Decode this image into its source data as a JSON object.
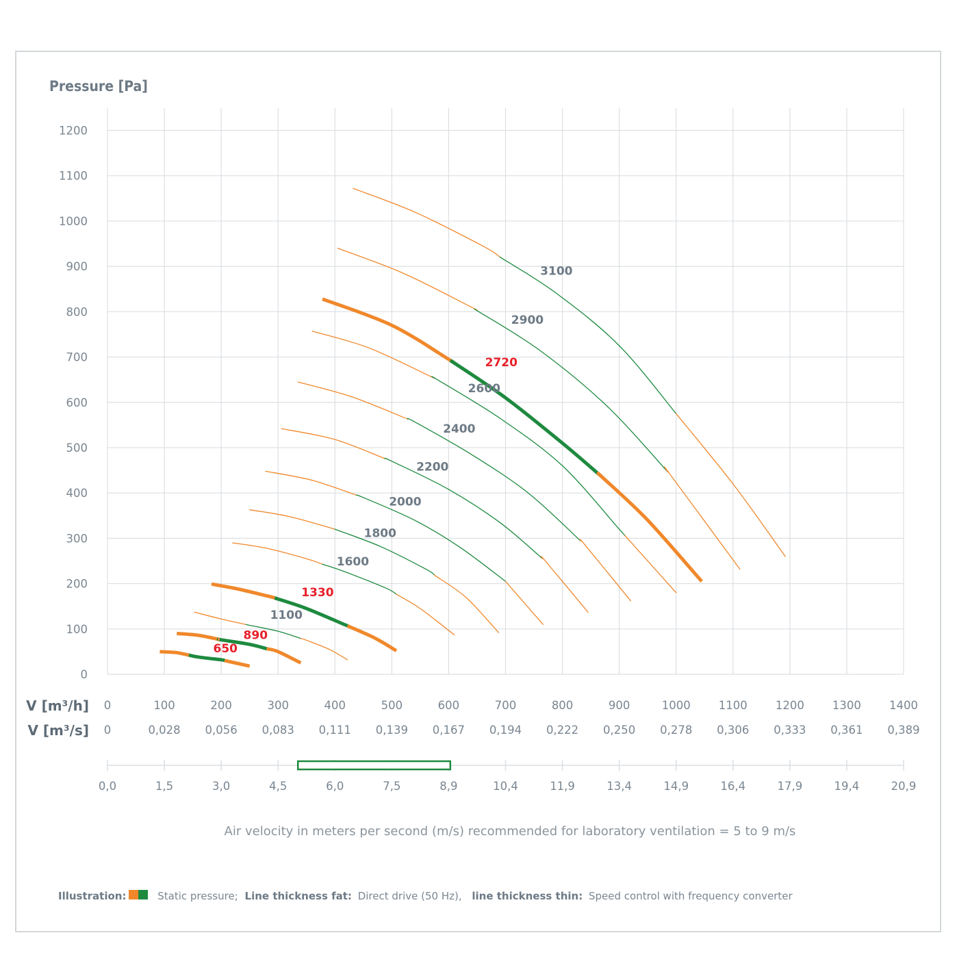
{
  "chart_data": {
    "type": "line",
    "title": "",
    "ylabel": "Pressure [Pa]",
    "ylim": [
      0,
      1250
    ],
    "yticks": [
      "0",
      "100",
      "200",
      "300",
      "400",
      "500",
      "600",
      "700",
      "800",
      "900",
      "1000",
      "1100",
      "1200"
    ],
    "xlim": [
      0,
      1400
    ],
    "x_axis_rows": [
      {
        "label": "V [m³/h]",
        "ticks": [
          "0",
          "100",
          "200",
          "300",
          "400",
          "500",
          "600",
          "700",
          "800",
          "900",
          "1000",
          "1100",
          "1200",
          "1300",
          "1400"
        ]
      },
      {
        "label": "V [m³/s]",
        "ticks": [
          "0",
          "0,028",
          "0,056",
          "0,083",
          "0,111",
          "0,139",
          "0,167",
          "0,194",
          "0,222",
          "0,250",
          "0,278",
          "0,306",
          "0,333",
          "0,361",
          "0,389"
        ]
      }
    ],
    "velocity_axis": {
      "ticks": [
        "0,0",
        "1,5",
        "3,0",
        "4,5",
        "6,0",
        "7,5",
        "8,9",
        "10,4",
        "11,9",
        "13,4",
        "14,9",
        "16,4",
        "17,9",
        "19,4",
        "20,9"
      ],
      "recommended_range": [
        5,
        9
      ]
    },
    "series": [
      {
        "name": "650",
        "direct_drive": true,
        "label_value": [
          186,
          48
        ],
        "points": [
          [
            92,
            50
          ],
          [
            120,
            48
          ],
          [
            160,
            38
          ],
          [
            200,
            32
          ],
          [
            250,
            18
          ]
        ],
        "green_range": [
          143,
          206
        ]
      },
      {
        "name": "890",
        "direct_drive": true,
        "label_value": [
          239,
          78
        ],
        "points": [
          [
            122,
            90
          ],
          [
            160,
            86
          ],
          [
            200,
            76
          ],
          [
            250,
            66
          ],
          [
            300,
            50
          ],
          [
            340,
            25
          ]
        ],
        "green_range": [
          197,
          280
        ]
      },
      {
        "name": "1100",
        "direct_drive": false,
        "label_value": [
          286,
          122
        ],
        "points": [
          [
            153,
            137
          ],
          [
            200,
            122
          ],
          [
            250,
            108
          ],
          [
            300,
            95
          ],
          [
            350,
            75
          ],
          [
            390,
            55
          ],
          [
            422,
            32
          ]
        ],
        "green_range": [
          244,
          340
        ]
      },
      {
        "name": "1330",
        "direct_drive": true,
        "label_value": [
          341,
          172
        ],
        "points": [
          [
            183,
            199
          ],
          [
            230,
            188
          ],
          [
            290,
            170
          ],
          [
            350,
            145
          ],
          [
            420,
            108
          ],
          [
            470,
            80
          ],
          [
            508,
            52
          ]
        ],
        "green_range": [
          294,
          422
        ]
      },
      {
        "name": "1600",
        "direct_drive": false,
        "label_value": [
          403,
          240
        ],
        "points": [
          [
            220,
            290
          ],
          [
            280,
            278
          ],
          [
            350,
            255
          ],
          [
            420,
            225
          ],
          [
            490,
            190
          ],
          [
            550,
            145
          ],
          [
            610,
            87
          ]
        ],
        "green_range": [
          378,
          508
        ]
      },
      {
        "name": "1800",
        "direct_drive": false,
        "label_value": [
          451,
          303
        ],
        "points": [
          [
            250,
            363
          ],
          [
            320,
            348
          ],
          [
            400,
            320
          ],
          [
            480,
            282
          ],
          [
            560,
            232
          ],
          [
            630,
            170
          ],
          [
            688,
            92
          ]
        ],
        "green_range": [
          400,
          575
        ]
      },
      {
        "name": "2000",
        "direct_drive": false,
        "label_value": [
          495,
          372
        ],
        "points": [
          [
            278,
            448
          ],
          [
            360,
            428
          ],
          [
            450,
            390
          ],
          [
            540,
            340
          ],
          [
            620,
            280
          ],
          [
            700,
            205
          ],
          [
            766,
            110
          ]
        ],
        "green_range": [
          438,
          700
        ]
      },
      {
        "name": "2200",
        "direct_drive": false,
        "label_value": [
          543,
          449
        ],
        "points": [
          [
            306,
            542
          ],
          [
            400,
            518
          ],
          [
            500,
            470
          ],
          [
            600,
            408
          ],
          [
            690,
            335
          ],
          [
            770,
            250
          ],
          [
            845,
            137
          ]
        ],
        "green_range": [
          488,
          765
        ]
      },
      {
        "name": "2400",
        "direct_drive": false,
        "label_value": [
          590,
          533
        ],
        "points": [
          [
            335,
            645
          ],
          [
            430,
            612
          ],
          [
            540,
            557
          ],
          [
            640,
            485
          ],
          [
            740,
            400
          ],
          [
            840,
            285
          ],
          [
            920,
            162
          ]
        ],
        "green_range": [
          528,
          832
        ]
      },
      {
        "name": "2600",
        "direct_drive": false,
        "label_value": [
          634,
          622
        ],
        "points": [
          [
            360,
            757
          ],
          [
            460,
            720
          ],
          [
            580,
            650
          ],
          [
            690,
            565
          ],
          [
            800,
            460
          ],
          [
            900,
            320
          ],
          [
            1000,
            180
          ]
        ],
        "green_range": [
          575,
          910
        ]
      },
      {
        "name": "2720",
        "direct_drive": true,
        "label_value": [
          664,
          680
        ],
        "points": [
          [
            378,
            828
          ],
          [
            500,
            770
          ],
          [
            600,
            695
          ],
          [
            700,
            610
          ],
          [
            800,
            510
          ],
          [
            870,
            435
          ],
          [
            950,
            340
          ],
          [
            1045,
            205
          ]
        ],
        "green_range": [
          603,
          867
        ]
      },
      {
        "name": "2900",
        "direct_drive": false,
        "label_value": [
          710,
          773
        ],
        "points": [
          [
            405,
            940
          ],
          [
            520,
            885
          ],
          [
            640,
            810
          ],
          [
            760,
            715
          ],
          [
            880,
            590
          ],
          [
            990,
            440
          ],
          [
            1112,
            232
          ]
        ],
        "green_range": [
          645,
          985
        ]
      },
      {
        "name": "3100",
        "direct_drive": false,
        "label_value": [
          761,
          881
        ],
        "points": [
          [
            432,
            1072
          ],
          [
            540,
            1020
          ],
          [
            660,
            945
          ],
          [
            790,
            840
          ],
          [
            900,
            725
          ],
          [
            1000,
            575
          ],
          [
            1100,
            420
          ],
          [
            1192,
            260
          ]
        ],
        "green_range": [
          690,
          1000
        ]
      }
    ]
  },
  "caption": "Air velocity in meters per second (m/s) recommended for laboratory ventilation = 5 to 9 m/s",
  "legend": {
    "illustration_label": "Illustration:",
    "static_pressure": "Static pressure;",
    "fat_label": "Line thickness fat:",
    "fat_desc": "Direct drive (50 Hz),",
    "thin_label": "line thickness thin:",
    "thin_desc": "Speed control with frequency converter",
    "colors": {
      "orange": "#f0882b",
      "green": "#1e8a3f"
    }
  },
  "colors": {
    "grid": "#dcdfe2",
    "axis_text": "#7a8691",
    "label_normal": "#6d7a85",
    "label_highlight": "#e8202a",
    "velocity_box": "#1e8a3f"
  }
}
